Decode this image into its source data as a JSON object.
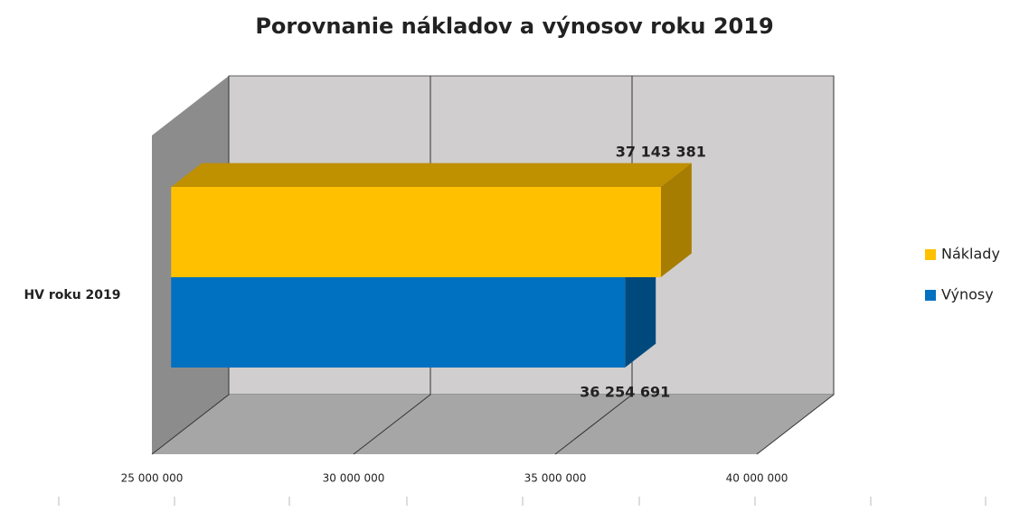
{
  "chart_data": {
    "type": "bar3d_horizontal",
    "title": "Porovnanie nákladov a výnosov roku 2019",
    "categories": [
      "HV roku 2019"
    ],
    "series": [
      {
        "name": "Náklady",
        "color": "#ffc000",
        "values": [
          37143381
        ],
        "value_labels": [
          "37 143 381"
        ]
      },
      {
        "name": "Výnosy",
        "color": "#0070c0",
        "values": [
          36254691
        ],
        "value_labels": [
          "36 254 691"
        ]
      }
    ],
    "xlim": [
      25000000,
      40000000
    ],
    "xticks": [
      {
        "value": 25000000,
        "label": "25 000 000"
      },
      {
        "value": 30000000,
        "label": "30 000 000"
      },
      {
        "value": 35000000,
        "label": "35 000 000"
      },
      {
        "value": 40000000,
        "label": "40 000 000"
      }
    ],
    "grid": true,
    "legend": "right"
  }
}
